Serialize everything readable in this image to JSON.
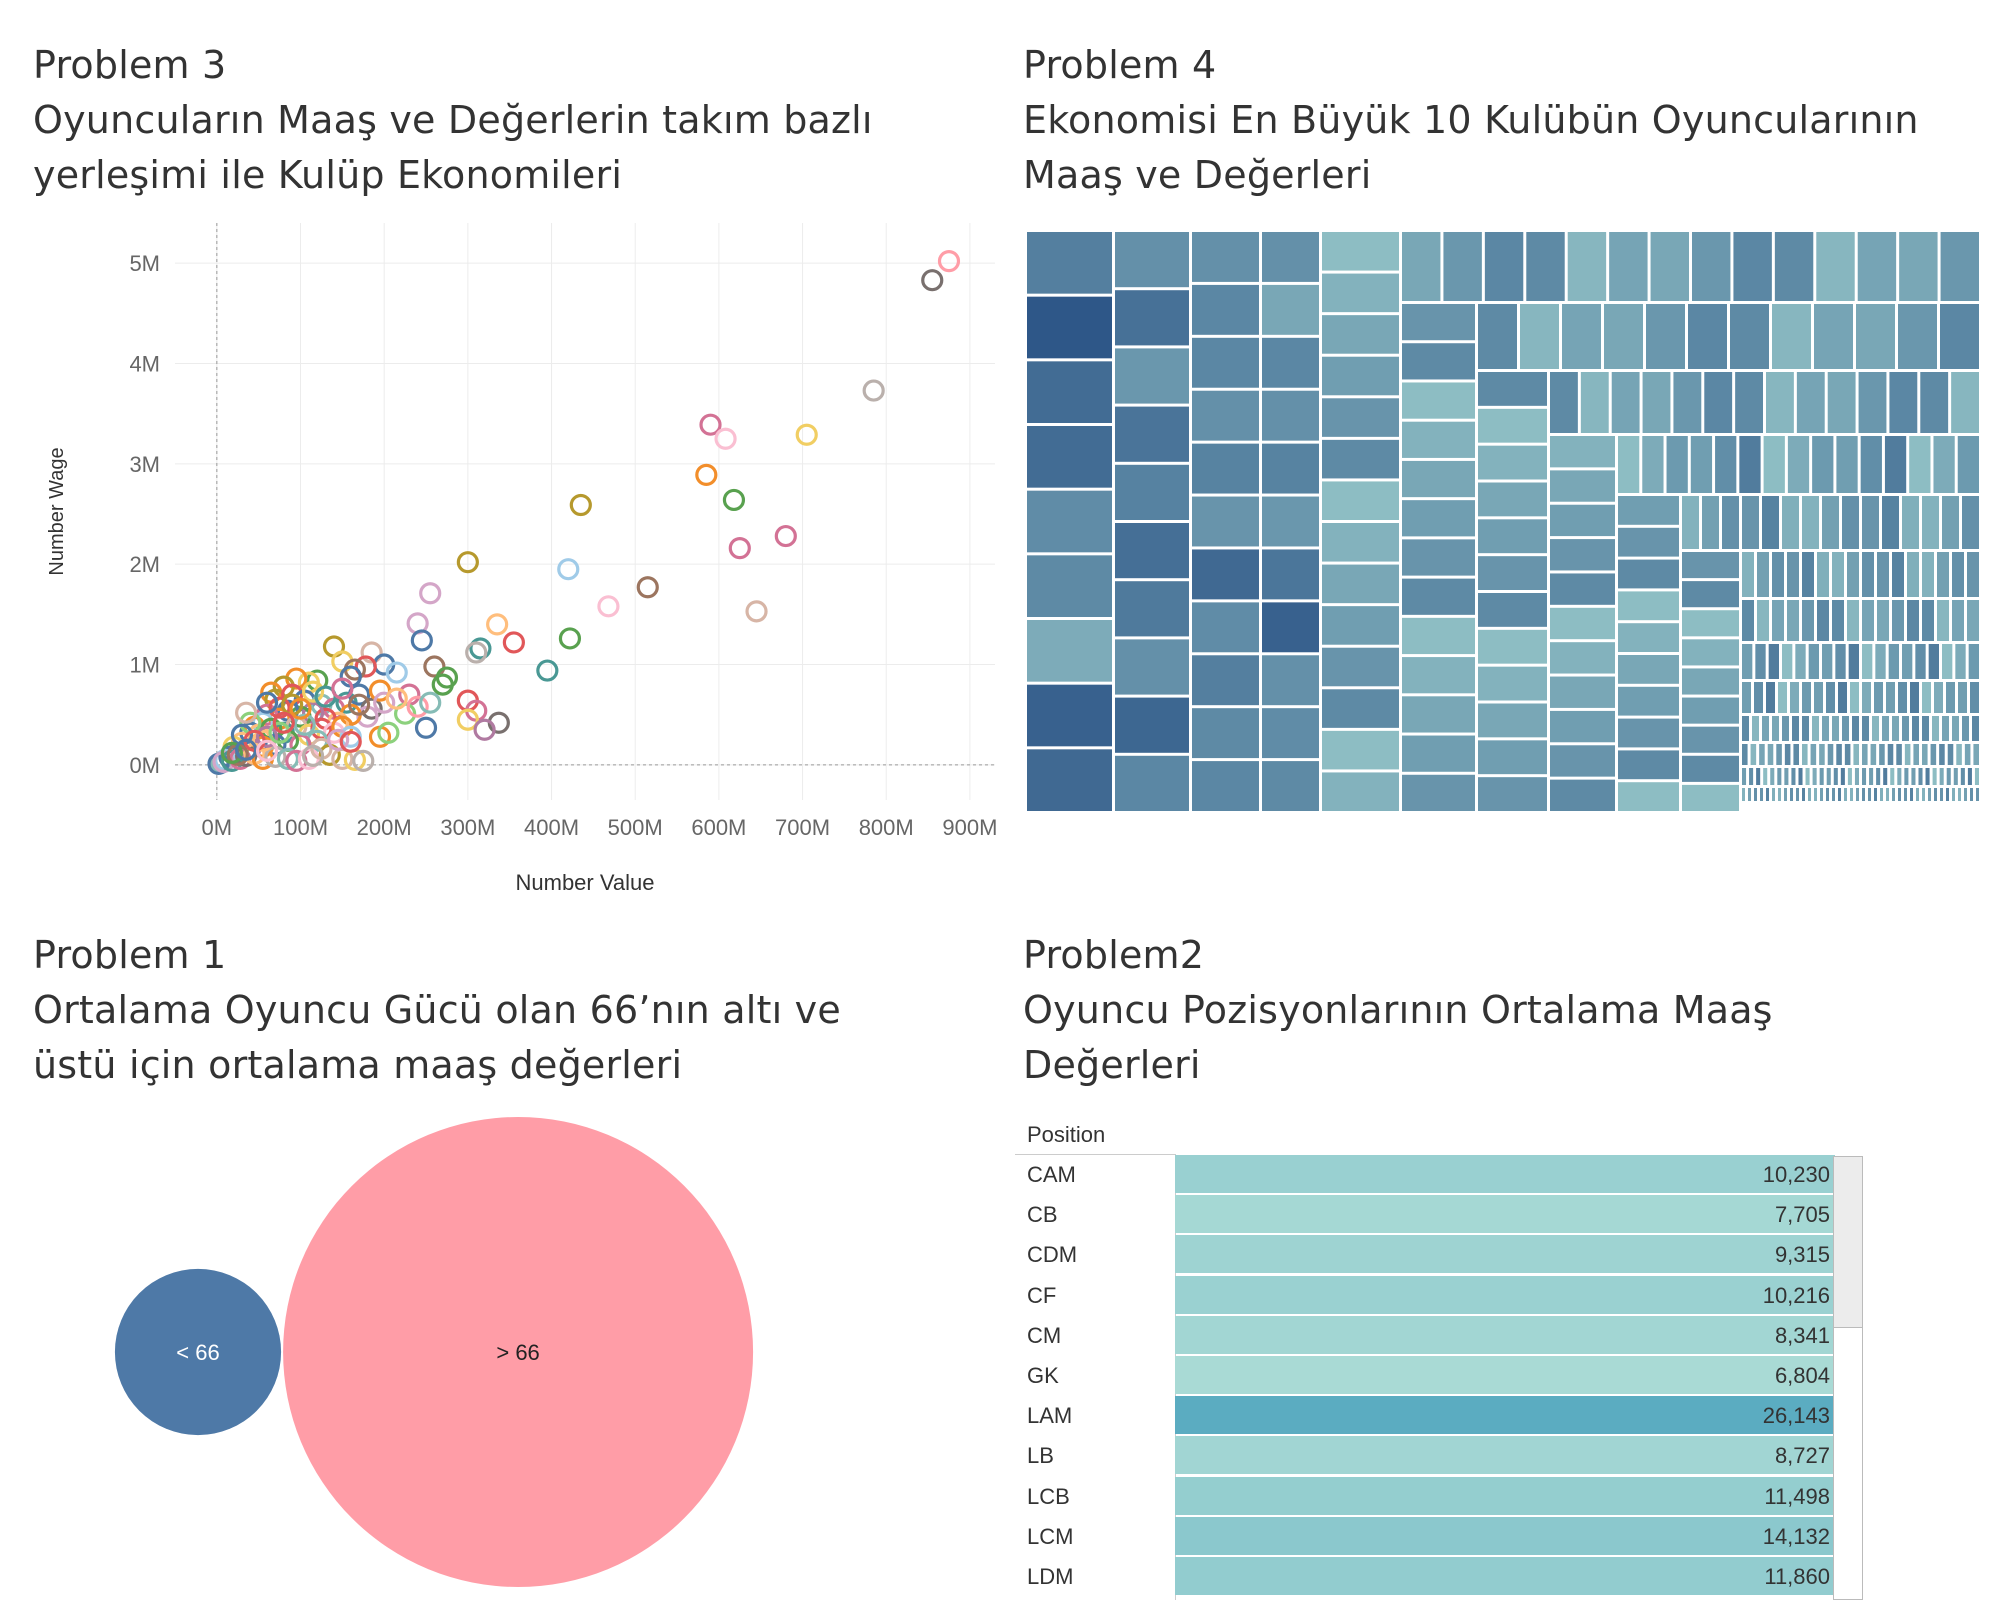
{
  "problem3": {
    "title": "Problem 3\nOyuncuların Maaş ve Değerlerin takım bazlı\nyerleşimi ile Kulüp Ekonomileri"
  },
  "problem4": {
    "title": "Problem 4\nEkonomisi En Büyük 10 Kulübün Oyuncularının\nMaaş ve Değerleri"
  },
  "problem1": {
    "title": "Problem 1\nOrtalama Oyuncu Gücü olan 66’nın altı ve\nüstü için ortalama maaş değerleri"
  },
  "problem2": {
    "title": "Problem2\nOyuncu Pozisyonlarının Ortalama Maaş\nDeğerleri"
  },
  "chart_data": [
    {
      "type": "scatter",
      "xlabel": "Number Value",
      "ylabel": "Number Wage",
      "xlim": [
        -50,
        930
      ],
      "ylim": [
        -350,
        5400
      ],
      "xticks": [
        0,
        100,
        200,
        300,
        400,
        500,
        600,
        700,
        800,
        900
      ],
      "xtick_labels": [
        "0M",
        "100M",
        "200M",
        "300M",
        "400M",
        "500M",
        "600M",
        "700M",
        "800M",
        "900M"
      ],
      "yticks": [
        0,
        1000,
        2000,
        3000,
        4000,
        5000
      ],
      "ytick_labels": [
        "0M",
        "1M",
        "2M",
        "3M",
        "4M",
        "5M"
      ],
      "grid": true,
      "points": [
        {
          "x": 875,
          "y": 5020,
          "color": "#FF9DA7"
        },
        {
          "x": 855,
          "y": 4830,
          "color": "#79706E"
        },
        {
          "x": 785,
          "y": 3730,
          "color": "#BAB0AC"
        },
        {
          "x": 705,
          "y": 3290,
          "color": "#F1CE63"
        },
        {
          "x": 590,
          "y": 3390,
          "color": "#D37295"
        },
        {
          "x": 608,
          "y": 3250,
          "color": "#FABFD2"
        },
        {
          "x": 585,
          "y": 2890,
          "color": "#F28E2B"
        },
        {
          "x": 618,
          "y": 2640,
          "color": "#59A14F"
        },
        {
          "x": 680,
          "y": 2280,
          "color": "#D37295"
        },
        {
          "x": 625,
          "y": 2160,
          "color": "#D37295"
        },
        {
          "x": 645,
          "y": 1530,
          "color": "#D7B5A6"
        },
        {
          "x": 435,
          "y": 2590,
          "color": "#B6992D"
        },
        {
          "x": 300,
          "y": 2020,
          "color": "#B6992D"
        },
        {
          "x": 420,
          "y": 1950,
          "color": "#A0CBE8"
        },
        {
          "x": 515,
          "y": 1770,
          "color": "#9C755F"
        },
        {
          "x": 468,
          "y": 1580,
          "color": "#FABFD2"
        },
        {
          "x": 255,
          "y": 1710,
          "color": "#D4A6C8"
        },
        {
          "x": 240,
          "y": 1410,
          "color": "#D4A6C8"
        },
        {
          "x": 335,
          "y": 1400,
          "color": "#FFBE7D"
        },
        {
          "x": 422,
          "y": 1260,
          "color": "#59A14F"
        },
        {
          "x": 355,
          "y": 1220,
          "color": "#E15759"
        },
        {
          "x": 245,
          "y": 1240,
          "color": "#4E79A7"
        },
        {
          "x": 315,
          "y": 1160,
          "color": "#499894"
        },
        {
          "x": 310,
          "y": 1120,
          "color": "#BAB0AC"
        },
        {
          "x": 395,
          "y": 940,
          "color": "#499894"
        },
        {
          "x": 140,
          "y": 1180,
          "color": "#B6992D"
        },
        {
          "x": 185,
          "y": 1120,
          "color": "#D7B5A6"
        },
        {
          "x": 150,
          "y": 1030,
          "color": "#F1CE63"
        },
        {
          "x": 260,
          "y": 980,
          "color": "#9C755F"
        },
        {
          "x": 200,
          "y": 1000,
          "color": "#4E79A7"
        },
        {
          "x": 215,
          "y": 920,
          "color": "#A0CBE8"
        },
        {
          "x": 275,
          "y": 870,
          "color": "#59A14F"
        },
        {
          "x": 270,
          "y": 800,
          "color": "#59A14F"
        },
        {
          "x": 230,
          "y": 700,
          "color": "#D37295"
        },
        {
          "x": 300,
          "y": 640,
          "color": "#E15759"
        },
        {
          "x": 310,
          "y": 540,
          "color": "#D37295"
        },
        {
          "x": 337,
          "y": 420,
          "color": "#79706E"
        },
        {
          "x": 300,
          "y": 450,
          "color": "#F1CE63"
        },
        {
          "x": 320,
          "y": 350,
          "color": "#B07AA1"
        },
        {
          "x": 250,
          "y": 370,
          "color": "#4E79A7"
        },
        {
          "x": 195,
          "y": 280,
          "color": "#F28E2B"
        },
        {
          "x": 205,
          "y": 320,
          "color": "#8CD17D"
        },
        {
          "x": 225,
          "y": 510,
          "color": "#8CD17D"
        },
        {
          "x": 240,
          "y": 580,
          "color": "#FF9DA7"
        },
        {
          "x": 255,
          "y": 620,
          "color": "#86BCB6"
        },
        {
          "x": 178,
          "y": 980,
          "color": "#E15759"
        },
        {
          "x": 165,
          "y": 950,
          "color": "#9D7660"
        },
        {
          "x": 160,
          "y": 880,
          "color": "#4E79A7"
        },
        {
          "x": 120,
          "y": 840,
          "color": "#59A14F"
        },
        {
          "x": 110,
          "y": 820,
          "color": "#F1CE63"
        },
        {
          "x": 95,
          "y": 860,
          "color": "#F28E2B"
        },
        {
          "x": 80,
          "y": 780,
          "color": "#B6992D"
        },
        {
          "x": 65,
          "y": 720,
          "color": "#F28E2B"
        },
        {
          "x": 70,
          "y": 650,
          "color": "#B6992D"
        },
        {
          "x": 90,
          "y": 700,
          "color": "#E15759"
        },
        {
          "x": 105,
          "y": 640,
          "color": "#4E79A7"
        },
        {
          "x": 125,
          "y": 600,
          "color": "#86BCB6"
        },
        {
          "x": 140,
          "y": 560,
          "color": "#D37295"
        },
        {
          "x": 155,
          "y": 620,
          "color": "#499894"
        },
        {
          "x": 170,
          "y": 700,
          "color": "#4E79A7"
        },
        {
          "x": 185,
          "y": 560,
          "color": "#79706E"
        },
        {
          "x": 180,
          "y": 480,
          "color": "#D4A6C8"
        },
        {
          "x": 160,
          "y": 500,
          "color": "#F28E2B"
        },
        {
          "x": 145,
          "y": 420,
          "color": "#FFBE7D"
        },
        {
          "x": 130,
          "y": 460,
          "color": "#E15759"
        },
        {
          "x": 115,
          "y": 520,
          "color": "#B07AA1"
        },
        {
          "x": 100,
          "y": 480,
          "color": "#59A14F"
        },
        {
          "x": 85,
          "y": 540,
          "color": "#4E79A7"
        },
        {
          "x": 75,
          "y": 460,
          "color": "#F28E2B"
        },
        {
          "x": 60,
          "y": 500,
          "color": "#D37295"
        },
        {
          "x": 55,
          "y": 420,
          "color": "#A0CBE8"
        },
        {
          "x": 45,
          "y": 380,
          "color": "#F28E2B"
        },
        {
          "x": 40,
          "y": 320,
          "color": "#4E79A7"
        },
        {
          "x": 50,
          "y": 300,
          "color": "#FFBE7D"
        },
        {
          "x": 65,
          "y": 360,
          "color": "#59A14F"
        },
        {
          "x": 80,
          "y": 320,
          "color": "#499894"
        },
        {
          "x": 95,
          "y": 380,
          "color": "#D7B5A6"
        },
        {
          "x": 110,
          "y": 300,
          "color": "#F1CE63"
        },
        {
          "x": 125,
          "y": 360,
          "color": "#E15759"
        },
        {
          "x": 140,
          "y": 320,
          "color": "#FABFD2"
        },
        {
          "x": 150,
          "y": 380,
          "color": "#F28E2B"
        },
        {
          "x": 120,
          "y": 240,
          "color": "#86BCB6"
        },
        {
          "x": 100,
          "y": 200,
          "color": "#D37295"
        },
        {
          "x": 85,
          "y": 240,
          "color": "#59A14F"
        },
        {
          "x": 70,
          "y": 200,
          "color": "#4E79A7"
        },
        {
          "x": 55,
          "y": 180,
          "color": "#F28E2B"
        },
        {
          "x": 40,
          "y": 160,
          "color": "#B07AA1"
        },
        {
          "x": 30,
          "y": 220,
          "color": "#FFBE7D"
        },
        {
          "x": 25,
          "y": 120,
          "color": "#59A14F"
        },
        {
          "x": 20,
          "y": 180,
          "color": "#F1CE63"
        },
        {
          "x": 15,
          "y": 80,
          "color": "#4E79A7"
        },
        {
          "x": 10,
          "y": 50,
          "color": "#A0CBE8"
        },
        {
          "x": 5,
          "y": 20,
          "color": "#86BCB6"
        },
        {
          "x": 2,
          "y": 10,
          "color": "#4E79A7"
        },
        {
          "x": 8,
          "y": 30,
          "color": "#D4A6C8"
        },
        {
          "x": 18,
          "y": 40,
          "color": "#499894"
        },
        {
          "x": 28,
          "y": 60,
          "color": "#D37295"
        },
        {
          "x": 35,
          "y": 90,
          "color": "#79706E"
        },
        {
          "x": 45,
          "y": 110,
          "color": "#FFBE7D"
        },
        {
          "x": 55,
          "y": 60,
          "color": "#F28E2B"
        },
        {
          "x": 70,
          "y": 80,
          "color": "#BAB0AC"
        },
        {
          "x": 85,
          "y": 60,
          "color": "#86BCB6"
        },
        {
          "x": 95,
          "y": 40,
          "color": "#D37295"
        },
        {
          "x": 110,
          "y": 60,
          "color": "#FABFD2"
        },
        {
          "x": 135,
          "y": 100,
          "color": "#B6992D"
        },
        {
          "x": 150,
          "y": 60,
          "color": "#D7B5A6"
        },
        {
          "x": 165,
          "y": 50,
          "color": "#F1CE63"
        },
        {
          "x": 175,
          "y": 40,
          "color": "#BAB0AC"
        },
        {
          "x": 55,
          "y": 240,
          "color": "#FFBE7D"
        },
        {
          "x": 40,
          "y": 420,
          "color": "#8CD17D"
        },
        {
          "x": 35,
          "y": 520,
          "color": "#D7B5A6"
        },
        {
          "x": 75,
          "y": 570,
          "color": "#E15759"
        },
        {
          "x": 90,
          "y": 600,
          "color": "#B6992D"
        },
        {
          "x": 115,
          "y": 730,
          "color": "#F1CE63"
        },
        {
          "x": 130,
          "y": 680,
          "color": "#499894"
        },
        {
          "x": 150,
          "y": 760,
          "color": "#D37295"
        },
        {
          "x": 195,
          "y": 740,
          "color": "#F28E2B"
        },
        {
          "x": 200,
          "y": 620,
          "color": "#D4A6C8"
        },
        {
          "x": 215,
          "y": 660,
          "color": "#FFBE7D"
        },
        {
          "x": 105,
          "y": 400,
          "color": "#86BCB6"
        },
        {
          "x": 60,
          "y": 280,
          "color": "#B07AA1"
        },
        {
          "x": 30,
          "y": 300,
          "color": "#4E79A7"
        },
        {
          "x": 45,
          "y": 240,
          "color": "#E15759"
        },
        {
          "x": 25,
          "y": 100,
          "color": "#9C755F"
        },
        {
          "x": 18,
          "y": 120,
          "color": "#59A14F"
        },
        {
          "x": 35,
          "y": 150,
          "color": "#4E79A7"
        },
        {
          "x": 60,
          "y": 140,
          "color": "#FABFD2"
        },
        {
          "x": 75,
          "y": 320,
          "color": "#8CD17D"
        },
        {
          "x": 125,
          "y": 160,
          "color": "#D7B5A6"
        },
        {
          "x": 160,
          "y": 280,
          "color": "#A0CBE8"
        },
        {
          "x": 145,
          "y": 250,
          "color": "#D4A6C8"
        },
        {
          "x": 160,
          "y": 230,
          "color": "#E15759"
        },
        {
          "x": 170,
          "y": 600,
          "color": "#9D7660"
        },
        {
          "x": 100,
          "y": 560,
          "color": "#F28E2B"
        },
        {
          "x": 80,
          "y": 420,
          "color": "#E15759"
        },
        {
          "x": 60,
          "y": 620,
          "color": "#4E79A7"
        },
        {
          "x": 115,
          "y": 90,
          "color": "#BAB0AC"
        }
      ]
    },
    {
      "type": "heatmap",
      "note_kind": "treemap",
      "columns": [
        {
          "w": 88,
          "cells": [
            0.68,
            0.98,
            0.82,
            0.82,
            0.58,
            0.6,
            0.35,
            0.9,
            0.84
          ]
        },
        {
          "w": 77,
          "cells": [
            0.55,
            0.78,
            0.5,
            0.76,
            0.66,
            0.8,
            0.72,
            0.55,
            0.86,
            0.62
          ]
        },
        {
          "w": 70,
          "cells": [
            0.55,
            0.62,
            0.62,
            0.55,
            0.65,
            0.52,
            0.84,
            0.58,
            0.68,
            0.6,
            0.62
          ]
        },
        {
          "w": 60,
          "cells": [
            0.55,
            0.38,
            0.62,
            0.55,
            0.65,
            0.5,
            0.75,
            0.9,
            0.55,
            0.58,
            0.6
          ]
        }
      ],
      "small_tile_levels": [
        0.22,
        0.3,
        0.38,
        0.45,
        0.52,
        0.6
      ]
    },
    {
      "type": "bubble",
      "bubbles": [
        {
          "label": "< 66",
          "value": 1,
          "color": "#4E79A7"
        },
        {
          "label": "> 66",
          "value": 8,
          "color": "#FF9DA7"
        }
      ]
    },
    {
      "type": "table",
      "column_header": "Position",
      "rows": [
        {
          "category": "CAM",
          "value": "10,230",
          "level": 0.35
        },
        {
          "category": "CB",
          "value": "7,705",
          "level": 0.22
        },
        {
          "category": "CDM",
          "value": "9,315",
          "level": 0.3
        },
        {
          "category": "CF",
          "value": "10,216",
          "level": 0.34
        },
        {
          "category": "CM",
          "value": "8,341",
          "level": 0.25
        },
        {
          "category": "GK",
          "value": "6,804",
          "level": 0.18
        },
        {
          "category": "LAM",
          "value": "26,143",
          "level": 1.0
        },
        {
          "category": "LB",
          "value": "8,727",
          "level": 0.26
        },
        {
          "category": "LCB",
          "value": "11,498",
          "level": 0.4
        },
        {
          "category": "LCM",
          "value": "14,132",
          "level": 0.5
        },
        {
          "category": "LDM",
          "value": "11,860",
          "level": 0.42
        }
      ]
    }
  ]
}
